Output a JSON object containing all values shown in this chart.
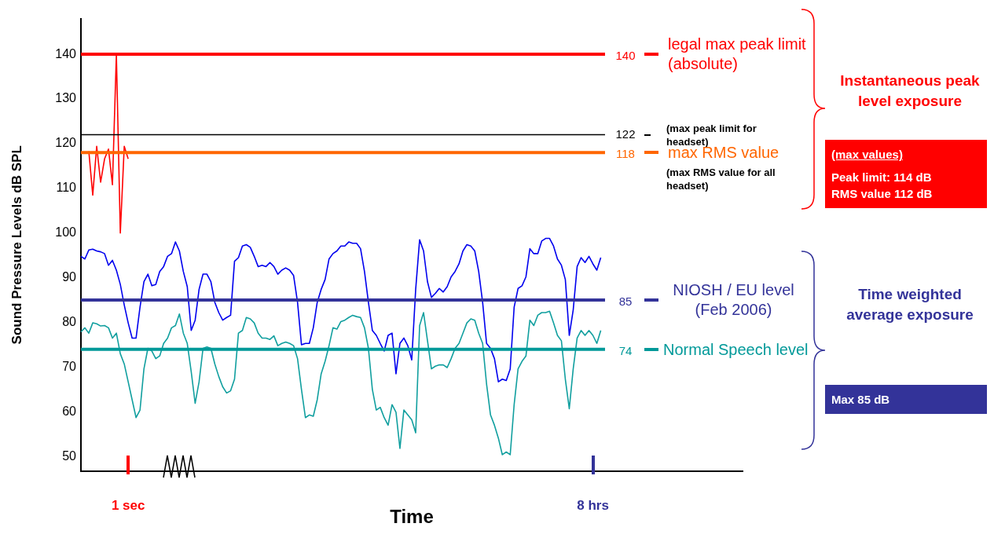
{
  "chart_data": {
    "type": "line",
    "xlabel": "Time",
    "ylabel": "Sound Pressure Levels dB SPL",
    "categories": [
      null,
      null,
      null,
      null,
      null,
      null,
      null,
      null,
      null,
      null,
      null,
      null,
      "1 sec",
      null,
      null,
      null,
      null,
      null,
      null,
      null,
      null,
      null,
      null,
      null,
      null,
      null,
      null,
      null,
      null,
      null,
      null,
      null,
      null,
      null,
      null,
      null,
      null,
      null,
      null,
      null,
      null,
      null,
      null,
      null,
      null,
      null,
      null,
      null,
      null,
      null,
      null,
      null,
      null,
      null,
      null,
      null,
      null,
      null,
      null,
      null,
      null,
      null,
      null,
      null,
      null,
      null,
      null,
      null,
      null,
      null,
      null,
      null,
      null,
      null,
      null,
      null,
      null,
      null,
      null,
      null,
      null,
      null,
      null,
      null,
      null,
      null,
      null,
      null,
      null,
      null,
      null,
      null,
      null,
      null,
      null,
      null,
      null,
      null,
      null,
      null,
      null,
      null,
      null,
      null,
      null,
      null,
      null,
      null,
      null,
      null,
      null,
      null,
      null,
      null,
      null,
      null,
      null,
      null,
      null,
      null,
      null,
      null,
      null,
      null,
      null,
      null,
      null,
      null,
      null,
      null,
      "8 hrs",
      null,
      null,
      null,
      null,
      null,
      null,
      null,
      null,
      null,
      null,
      null,
      null,
      null,
      null,
      null,
      null,
      null,
      null,
      null,
      null,
      null,
      null,
      null,
      null,
      null,
      null,
      null,
      null,
      null,
      null,
      null,
      null,
      null,
      null,
      null,
      null,
      null,
      null
    ],
    "series": [
      {
        "color": "#ff0000",
        "values": [
          null,
          null,
          118.3,
          108.5,
          119.4,
          111.4,
          116.6,
          118.8,
          110.8,
          140,
          100,
          119.4,
          116.6,
          null,
          null,
          null,
          null,
          null,
          null,
          null,
          null,
          null,
          null,
          null,
          null,
          null,
          null,
          null,
          null,
          null,
          null,
          null,
          null,
          null,
          null,
          null,
          null,
          null,
          null,
          null,
          null,
          null,
          null,
          null,
          null,
          null,
          null,
          null,
          null,
          null,
          null,
          null,
          null,
          null,
          null,
          null,
          null,
          null,
          null,
          null,
          null,
          null,
          null,
          null,
          null,
          null,
          null,
          null,
          null,
          null,
          null,
          null,
          null,
          null,
          null,
          null,
          null,
          null,
          null,
          null,
          null,
          null,
          null,
          null,
          null,
          null,
          null,
          null,
          null,
          null,
          null,
          null,
          null,
          null,
          null,
          null,
          null,
          null,
          null,
          null,
          null,
          null,
          null,
          null,
          null,
          null,
          null,
          null,
          null,
          null,
          null,
          null,
          null,
          null,
          null,
          null,
          null,
          null,
          null,
          null,
          null,
          null,
          null,
          null,
          null,
          null,
          null,
          null,
          null,
          null,
          null,
          null,
          null,
          null,
          null,
          null,
          null,
          null,
          null,
          null,
          null,
          null,
          null,
          null,
          null,
          null,
          null,
          null,
          null,
          null,
          null,
          null,
          null,
          null,
          null,
          null,
          null,
          null,
          null,
          null,
          null,
          null,
          null,
          null,
          null,
          null,
          null,
          null,
          null
        ]
      },
      {
        "color": "#0000ee",
        "values": [
          94.8,
          94.2,
          96.2,
          96.4,
          96,
          95.8,
          95.4,
          92.8,
          93.9,
          91.7,
          88.5,
          83.9,
          79.9,
          76.5,
          76.5,
          83.4,
          89.1,
          90.8,
          88.2,
          88.5,
          91.4,
          92.5,
          94.8,
          95.4,
          98,
          96,
          91.4,
          88,
          78.2,
          80.5,
          87.4,
          90.8,
          90.8,
          89.1,
          84.5,
          82.2,
          80.5,
          81.1,
          81.6,
          93.7,
          94.5,
          97.1,
          97.4,
          96.8,
          94.8,
          92.5,
          92.8,
          92.5,
          93.4,
          92.5,
          90.8,
          91.7,
          92.2,
          91.7,
          90.5,
          84.5,
          75,
          75.3,
          75.3,
          78.8,
          84.5,
          87.4,
          89.6,
          94.2,
          95.4,
          96,
          97.1,
          97.1,
          98,
          97.7,
          97.7,
          96.5,
          91.4,
          84.5,
          78.2,
          77.1,
          75.3,
          73.6,
          77.1,
          77.6,
          68.5,
          75.3,
          76.5,
          74.8,
          71.6,
          87.4,
          98.5,
          96,
          89.1,
          85.6,
          86.5,
          87.6,
          86.8,
          88,
          90.2,
          91.4,
          93.1,
          96,
          97.4,
          97.1,
          96,
          91.4,
          84.5,
          75.3,
          74.2,
          71.9,
          66.7,
          67.3,
          67,
          69.6,
          83.4,
          87.6,
          88.2,
          90.2,
          96.5,
          95.4,
          95.4,
          98.2,
          98.8,
          98.8,
          97.1,
          94.2,
          92.8,
          89.6,
          77.1,
          82.8,
          92.5,
          94.5,
          93.4,
          94.8,
          93.1,
          91.7,
          94.5,
          null,
          null,
          null,
          null,
          null,
          null,
          null,
          null,
          null,
          null,
          null,
          null,
          null,
          null,
          null,
          null,
          null,
          null,
          null,
          null,
          null,
          null,
          null,
          null,
          null,
          null,
          null,
          null,
          null,
          null,
          null,
          null,
          null,
          null,
          null,
          null
        ]
      },
      {
        "color": "#119f9f",
        "values": [
          77.9,
          78.8,
          77.6,
          79.9,
          79.7,
          79.2,
          79.3,
          78.8,
          76.5,
          77.6,
          73,
          70.7,
          66.7,
          62.7,
          58.7,
          60.4,
          69.6,
          74.2,
          73.6,
          71.9,
          72.5,
          75.3,
          76.5,
          78.8,
          79.3,
          81.9,
          77.6,
          75.3,
          69,
          61.9,
          66.7,
          74.2,
          74.5,
          74.2,
          70.7,
          67.9,
          65.6,
          64.2,
          64.7,
          67.3,
          77.6,
          78.2,
          81.1,
          80.8,
          79.9,
          77.6,
          76.5,
          76.5,
          76.2,
          77,
          74.8,
          75.3,
          75.6,
          75.3,
          74.8,
          71.9,
          65,
          58.7,
          59.3,
          59,
          62.7,
          68.5,
          71.3,
          74.8,
          78.8,
          78.5,
          80.2,
          80.5,
          81.1,
          81.6,
          81.3,
          81.1,
          78.8,
          74.2,
          65,
          60.4,
          61,
          58.7,
          57,
          61.6,
          59.9,
          51.8,
          60.4,
          59.3,
          58.2,
          55.3,
          79.3,
          82.2,
          75.9,
          69.6,
          70.2,
          70.5,
          70.5,
          69.9,
          71.9,
          74.2,
          75.3,
          77.6,
          79.9,
          80.8,
          80.5,
          77.6,
          75.3,
          66.2,
          59.3,
          57,
          54.1,
          50.4,
          51,
          50.4,
          61.6,
          69.6,
          71.3,
          72.5,
          80.5,
          79.3,
          81.6,
          82.2,
          82.2,
          82.5,
          79.9,
          77.1,
          75.9,
          67.3,
          60.7,
          69.6,
          76.5,
          78.2,
          77.1,
          78.2,
          77.1,
          75.3,
          78.2,
          null,
          null,
          null,
          null,
          null,
          null,
          null,
          null,
          null,
          null,
          null,
          null,
          null,
          null,
          null,
          null,
          null,
          null,
          null,
          null,
          null,
          null,
          null,
          null,
          null,
          null,
          null,
          null,
          null,
          null,
          null,
          null,
          null,
          null,
          null,
          null
        ]
      }
    ],
    "ylim": [
      46.7,
      148
    ],
    "yticks": [
      50,
      60,
      70,
      80,
      90,
      100,
      110,
      120,
      130,
      140
    ],
    "grid": false,
    "legend": false,
    "marker": "none",
    "line_style": "solid",
    "ref_lines": [
      {
        "axis": "y",
        "value": 140,
        "label": "140",
        "color": "#ff0000"
      },
      {
        "axis": "y",
        "value": 122,
        "label": "122",
        "color": "#000000"
      },
      {
        "axis": "y",
        "value": 118,
        "label": "118",
        "color": "#ff6600"
      },
      {
        "axis": "y",
        "value": 85,
        "label": "85",
        "color": "#333399"
      },
      {
        "axis": "y",
        "value": 74,
        "label": "74",
        "color": "#009999"
      }
    ],
    "annotations": [
      "legal max peak limit (absolute)",
      "(max peak limit for headset)",
      "max RMS value",
      "(max RMS value for all headset)",
      "NIOSH / EU level (Feb 2006)",
      "Normal Speech level",
      "Instantaneous peak level exposure",
      "(max values)",
      "Peak limit: 114 dB",
      "RMS value 112 dB",
      "Time weighted average exposure",
      "Max 85 dB"
    ]
  }
}
